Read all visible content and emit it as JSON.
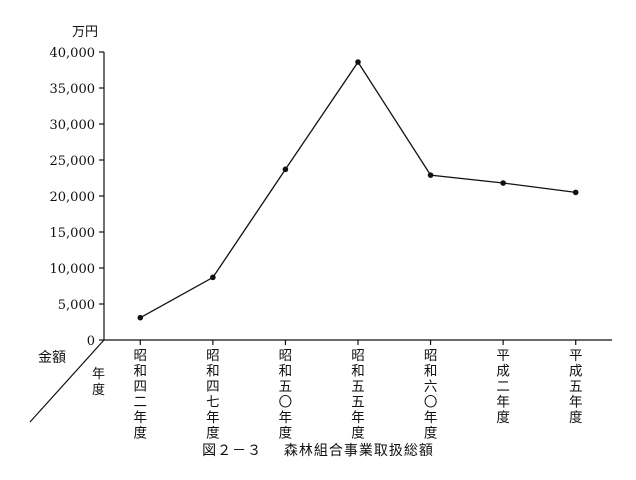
{
  "chart_data": {
    "type": "line",
    "title": "",
    "ylabel": "万円",
    "xlabel_bottom": "年度",
    "ylabel_bottom": "金額",
    "ylim": [
      0,
      40000
    ],
    "yticks": [
      0,
      5000,
      10000,
      15000,
      20000,
      25000,
      30000,
      35000,
      40000
    ],
    "ytick_labels": [
      "0",
      "5,000",
      "10,000",
      "15,000",
      "20,000",
      "25,000",
      "30,000",
      "35,000",
      "40,000"
    ],
    "categories": [
      "昭和四二年度",
      "昭和四七年度",
      "昭和五〇年度",
      "昭和五五年度",
      "昭和六〇年度",
      "平成二年度",
      "平成五年度"
    ],
    "category_display": [
      [
        "昭",
        "和",
        "四",
        "二",
        "年",
        "度"
      ],
      [
        "昭",
        "和",
        "四",
        "七",
        "年",
        "度"
      ],
      [
        "昭",
        "和",
        "五",
        "〇",
        "年",
        "度"
      ],
      [
        "昭",
        "和",
        "五",
        "五",
        "年",
        "度"
      ],
      [
        "昭",
        "和",
        "六",
        "〇",
        "年",
        "度"
      ],
      [
        "平",
        "成",
        "二",
        "年",
        "度"
      ],
      [
        "平",
        "成",
        "五",
        "年",
        "度"
      ]
    ],
    "series": [
      {
        "values": [
          3100,
          8700,
          23700,
          38600,
          22900,
          21800,
          20500
        ]
      }
    ],
    "grid": false,
    "legend": "none"
  },
  "caption": {
    "figure_number": "図２－３",
    "title": "森林組合事業取扱総額"
  }
}
